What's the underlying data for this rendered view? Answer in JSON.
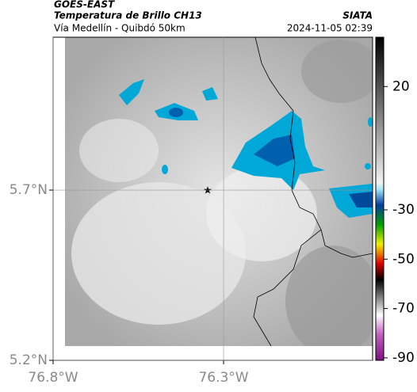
{
  "header": {
    "source": "GOES-EAST",
    "title": "Temperatura de Brillo CH13",
    "subtitle": "Vía Medellín - Quibdó 50km",
    "brand": "SIATA",
    "timestamp": "2024-11-05 02:39"
  },
  "map": {
    "lon_lim": [
      -76.8,
      -75.863
    ],
    "lat_lim": [
      5.2,
      6.149
    ],
    "lon_ticks": [
      {
        "value": -76.8,
        "label": "76.8°W"
      },
      {
        "value": -76.3,
        "label": "76.3°W"
      }
    ],
    "lat_ticks": [
      {
        "value": 5.7,
        "label": "5.7°N"
      },
      {
        "value": 5.2,
        "label": "5.2°N"
      }
    ]
  },
  "colorbar": {
    "lim": [
      -91,
      40
    ],
    "ticks": [
      20,
      -30,
      -50,
      -70,
      -90
    ]
  }
}
